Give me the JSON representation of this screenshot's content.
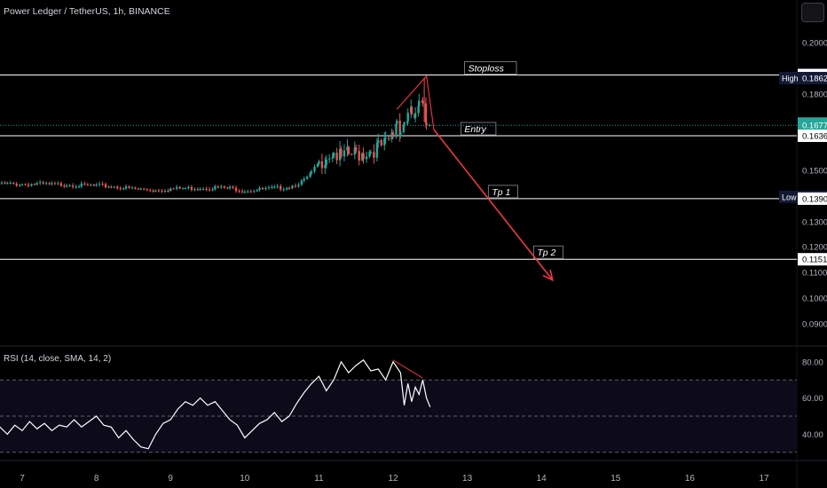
{
  "header": {
    "title": "Power Ledger / TetherUS, 1h, BINANCE"
  },
  "rsi_label": "RSI (14, close, SMA, 14, 2)",
  "colors": {
    "background": "#000000",
    "up_candle": "#26a69a",
    "down_candle": "#ef5350",
    "level_line": "#ffffff",
    "arrow": "#f23645",
    "rsi_line": "#ffffff",
    "rsi_band": "#0d0b1a",
    "current_price_badge": "#26a69a",
    "high_low_badge": "#131a36"
  },
  "chart_data": [
    {
      "type": "candlestick",
      "symbol": "Power Ledger / TetherUS",
      "timeframe": "1h",
      "exchange": "BINANCE",
      "x_ticks": [
        "7",
        "8",
        "9",
        "10",
        "11",
        "12",
        "13",
        "14",
        "15",
        "16",
        "17"
      ],
      "y_ticks": [
        "0.2000",
        "0.1800",
        "0.1500",
        "0.1300",
        "0.1200",
        "0.1100",
        "0.1000",
        "0.0900"
      ],
      "price_series": [
        [
          6.6,
          0.145
        ],
        [
          6.8,
          0.1447
        ],
        [
          7.0,
          0.1446
        ],
        [
          7.2,
          0.1447
        ],
        [
          7.4,
          0.1444
        ],
        [
          7.6,
          0.1446
        ],
        [
          7.8,
          0.1441
        ],
        [
          8.0,
          0.144
        ],
        [
          8.2,
          0.1438
        ],
        [
          8.4,
          0.1431
        ],
        [
          8.6,
          0.1426
        ],
        [
          8.8,
          0.1423
        ],
        [
          9.0,
          0.1428
        ],
        [
          9.2,
          0.143
        ],
        [
          9.4,
          0.1432
        ],
        [
          9.6,
          0.1433
        ],
        [
          9.8,
          0.143
        ],
        [
          10.0,
          0.1422
        ],
        [
          10.2,
          0.1425
        ],
        [
          10.4,
          0.143
        ],
        [
          10.6,
          0.1436
        ],
        [
          10.8,
          0.146
        ],
        [
          10.9,
          0.149
        ],
        [
          11.0,
          0.153
        ],
        [
          11.1,
          0.156
        ],
        [
          11.2,
          0.1572
        ],
        [
          11.3,
          0.1545
        ],
        [
          11.4,
          0.156
        ],
        [
          11.5,
          0.1565
        ],
        [
          11.6,
          0.157
        ],
        [
          11.7,
          0.158
        ],
        [
          11.8,
          0.159
        ],
        [
          11.9,
          0.1598
        ],
        [
          12.0,
          0.164
        ],
        [
          12.05,
          0.17
        ],
        [
          12.1,
          0.166
        ],
        [
          12.15,
          0.169
        ],
        [
          12.2,
          0.171
        ],
        [
          12.25,
          0.172
        ],
        [
          12.3,
          0.17
        ],
        [
          12.35,
          0.1742
        ],
        [
          12.4,
          0.178
        ],
        [
          12.45,
          0.17
        ],
        [
          12.5,
          0.1677
        ]
      ],
      "levels": [
        {
          "label": "Stoploss",
          "price": 0.1874
        },
        {
          "label": "Entry",
          "price": 0.1636
        },
        {
          "label": "Tp 1",
          "price": 0.139
        },
        {
          "label": "Tp 2",
          "price": 0.1151
        }
      ],
      "price_badges": [
        {
          "value": "0.1874",
          "style": "level"
        },
        {
          "tag": "High",
          "value": "0.1862",
          "style": "highlow"
        },
        {
          "value": "0.1677",
          "sub": "48:07",
          "style": "current"
        },
        {
          "value": "0.1636",
          "style": "level"
        },
        {
          "tag": "Low",
          "value": "0.1397",
          "style": "highlow"
        },
        {
          "value": "0.1390",
          "style": "level"
        },
        {
          "value": "0.1151",
          "style": "level"
        }
      ],
      "projection": {
        "from": {
          "day": 12.55,
          "price": 0.166
        },
        "to": {
          "day": 14.15,
          "price": 0.107
        }
      }
    },
    {
      "type": "line",
      "name": "RSI (14, close, SMA, 14, 2)",
      "y_ticks": [
        "80.00",
        "60.00",
        "40.00"
      ],
      "bands": [
        70,
        50,
        30
      ],
      "values": [
        [
          6.6,
          40
        ],
        [
          6.7,
          44
        ],
        [
          6.8,
          40
        ],
        [
          6.9,
          45
        ],
        [
          7.0,
          42
        ],
        [
          7.1,
          47
        ],
        [
          7.2,
          43
        ],
        [
          7.3,
          46
        ],
        [
          7.4,
          42
        ],
        [
          7.5,
          45
        ],
        [
          7.6,
          44
        ],
        [
          7.7,
          48
        ],
        [
          7.8,
          44
        ],
        [
          7.9,
          47
        ],
        [
          8.0,
          50
        ],
        [
          8.1,
          45
        ],
        [
          8.2,
          44
        ],
        [
          8.3,
          38
        ],
        [
          8.4,
          42
        ],
        [
          8.5,
          37
        ],
        [
          8.6,
          33
        ],
        [
          8.7,
          32
        ],
        [
          8.8,
          40
        ],
        [
          8.9,
          46
        ],
        [
          9.0,
          48
        ],
        [
          9.1,
          54
        ],
        [
          9.2,
          58
        ],
        [
          9.3,
          56
        ],
        [
          9.4,
          60
        ],
        [
          9.5,
          56
        ],
        [
          9.6,
          58
        ],
        [
          9.7,
          53
        ],
        [
          9.8,
          48
        ],
        [
          9.9,
          45
        ],
        [
          10.0,
          38
        ],
        [
          10.1,
          42
        ],
        [
          10.2,
          46
        ],
        [
          10.3,
          48
        ],
        [
          10.4,
          52
        ],
        [
          10.5,
          47
        ],
        [
          10.6,
          50
        ],
        [
          10.7,
          57
        ],
        [
          10.8,
          63
        ],
        [
          10.9,
          68
        ],
        [
          11.0,
          72
        ],
        [
          11.1,
          64
        ],
        [
          11.2,
          70
        ],
        [
          11.3,
          80
        ],
        [
          11.4,
          74
        ],
        [
          11.5,
          78
        ],
        [
          11.6,
          81
        ],
        [
          11.7,
          75
        ],
        [
          11.8,
          76
        ],
        [
          11.9,
          70
        ],
        [
          12.0,
          80
        ],
        [
          12.1,
          74
        ],
        [
          12.15,
          56
        ],
        [
          12.2,
          68
        ],
        [
          12.25,
          58
        ],
        [
          12.3,
          66
        ],
        [
          12.35,
          62
        ],
        [
          12.4,
          70
        ],
        [
          12.45,
          60
        ],
        [
          12.5,
          55
        ]
      ]
    }
  ]
}
